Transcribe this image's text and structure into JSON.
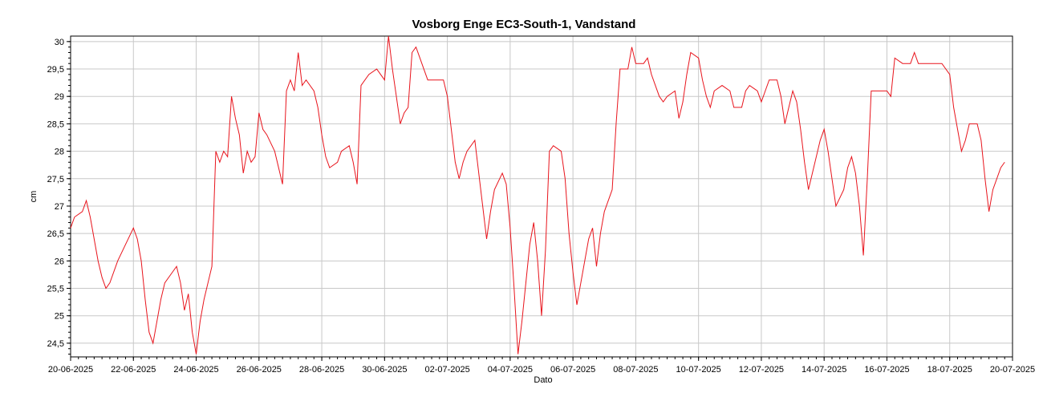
{
  "chart_data": {
    "type": "line",
    "title": "Vosborg Enge EC3-South-1, Vandstand",
    "xlabel": "Dato",
    "ylabel": "cm",
    "xlim": [
      "2025-06-20",
      "2025-07-20"
    ],
    "ylim": [
      24.25,
      30.1
    ],
    "x_ticks": [
      "20-06-2025",
      "22-06-2025",
      "24-06-2025",
      "26-06-2025",
      "28-06-2025",
      "30-06-2025",
      "02-07-2025",
      "04-07-2025",
      "06-07-2025",
      "08-07-2025",
      "10-07-2025",
      "12-07-2025",
      "14-07-2025",
      "16-07-2025",
      "18-07-2025",
      "20-07-2025"
    ],
    "y_ticks": [
      "24,5",
      "25",
      "25,5",
      "26",
      "26,5",
      "27",
      "27,5",
      "28",
      "28,5",
      "29",
      "29,5",
      "30"
    ],
    "grid": true,
    "series": [
      {
        "color": "#e8141c",
        "points": [
          [
            "2025-06-20 00:00",
            26.6
          ],
          [
            "2025-06-20 03:00",
            26.8
          ],
          [
            "2025-06-20 09:00",
            26.9
          ],
          [
            "2025-06-20 12:00",
            27.1
          ],
          [
            "2025-06-20 15:00",
            26.8
          ],
          [
            "2025-06-20 18:00",
            26.4
          ],
          [
            "2025-06-20 21:00",
            26.0
          ],
          [
            "2025-06-21 00:00",
            25.7
          ],
          [
            "2025-06-21 03:00",
            25.5
          ],
          [
            "2025-06-21 06:00",
            25.6
          ],
          [
            "2025-06-21 12:00",
            26.0
          ],
          [
            "2025-06-21 18:00",
            26.3
          ],
          [
            "2025-06-22 00:00",
            26.6
          ],
          [
            "2025-06-22 03:00",
            26.4
          ],
          [
            "2025-06-22 06:00",
            26.0
          ],
          [
            "2025-06-22 09:00",
            25.3
          ],
          [
            "2025-06-22 12:00",
            24.7
          ],
          [
            "2025-06-22 15:00",
            24.5
          ],
          [
            "2025-06-22 18:00",
            24.9
          ],
          [
            "2025-06-22 21:00",
            25.3
          ],
          [
            "2025-06-23 00:00",
            25.6
          ],
          [
            "2025-06-23 06:00",
            25.8
          ],
          [
            "2025-06-23 09:00",
            25.9
          ],
          [
            "2025-06-23 12:00",
            25.6
          ],
          [
            "2025-06-23 15:00",
            25.1
          ],
          [
            "2025-06-23 18:00",
            25.4
          ],
          [
            "2025-06-23 21:00",
            24.7
          ],
          [
            "2025-06-24 00:00",
            24.3
          ],
          [
            "2025-06-24 03:00",
            24.9
          ],
          [
            "2025-06-24 06:00",
            25.3
          ],
          [
            "2025-06-24 09:00",
            25.6
          ],
          [
            "2025-06-24 12:00",
            25.9
          ],
          [
            "2025-06-24 15:00",
            28.0
          ],
          [
            "2025-06-24 18:00",
            27.8
          ],
          [
            "2025-06-24 21:00",
            28.0
          ],
          [
            "2025-06-25 00:00",
            27.9
          ],
          [
            "2025-06-25 03:00",
            29.0
          ],
          [
            "2025-06-25 06:00",
            28.6
          ],
          [
            "2025-06-25 09:00",
            28.3
          ],
          [
            "2025-06-25 12:00",
            27.6
          ],
          [
            "2025-06-25 15:00",
            28.0
          ],
          [
            "2025-06-25 18:00",
            27.8
          ],
          [
            "2025-06-25 21:00",
            27.9
          ],
          [
            "2025-06-26 00:00",
            28.7
          ],
          [
            "2025-06-26 03:00",
            28.4
          ],
          [
            "2025-06-26 06:00",
            28.3
          ],
          [
            "2025-06-26 12:00",
            28.0
          ],
          [
            "2025-06-26 18:00",
            27.4
          ],
          [
            "2025-06-26 21:00",
            29.1
          ],
          [
            "2025-06-27 00:00",
            29.3
          ],
          [
            "2025-06-27 03:00",
            29.1
          ],
          [
            "2025-06-27 06:00",
            29.8
          ],
          [
            "2025-06-27 09:00",
            29.2
          ],
          [
            "2025-06-27 12:00",
            29.3
          ],
          [
            "2025-06-27 18:00",
            29.1
          ],
          [
            "2025-06-27 21:00",
            28.8
          ],
          [
            "2025-06-28 00:00",
            28.3
          ],
          [
            "2025-06-28 03:00",
            27.9
          ],
          [
            "2025-06-28 06:00",
            27.7
          ],
          [
            "2025-06-28 12:00",
            27.8
          ],
          [
            "2025-06-28 15:00",
            28.0
          ],
          [
            "2025-06-28 21:00",
            28.1
          ],
          [
            "2025-06-29 00:00",
            27.8
          ],
          [
            "2025-06-29 03:00",
            27.4
          ],
          [
            "2025-06-29 06:00",
            29.2
          ],
          [
            "2025-06-29 12:00",
            29.4
          ],
          [
            "2025-06-29 18:00",
            29.5
          ],
          [
            "2025-06-30 00:00",
            29.3
          ],
          [
            "2025-06-30 03:00",
            30.1
          ],
          [
            "2025-06-30 06:00",
            29.5
          ],
          [
            "2025-06-30 09:00",
            29.0
          ],
          [
            "2025-06-30 12:00",
            28.5
          ],
          [
            "2025-06-30 15:00",
            28.7
          ],
          [
            "2025-06-30 18:00",
            28.8
          ],
          [
            "2025-06-30 21:00",
            29.8
          ],
          [
            "2025-07-01 00:00",
            29.9
          ],
          [
            "2025-07-01 03:00",
            29.7
          ],
          [
            "2025-07-01 06:00",
            29.5
          ],
          [
            "2025-07-01 09:00",
            29.3
          ],
          [
            "2025-07-01 15:00",
            29.3
          ],
          [
            "2025-07-01 21:00",
            29.3
          ],
          [
            "2025-07-02 00:00",
            29.0
          ],
          [
            "2025-07-02 03:00",
            28.4
          ],
          [
            "2025-07-02 06:00",
            27.8
          ],
          [
            "2025-07-02 09:00",
            27.5
          ],
          [
            "2025-07-02 12:00",
            27.8
          ],
          [
            "2025-07-02 15:00",
            28.0
          ],
          [
            "2025-07-02 21:00",
            28.2
          ],
          [
            "2025-07-03 00:00",
            27.6
          ],
          [
            "2025-07-03 03:00",
            27.0
          ],
          [
            "2025-07-03 06:00",
            26.4
          ],
          [
            "2025-07-03 09:00",
            26.9
          ],
          [
            "2025-07-03 12:00",
            27.3
          ],
          [
            "2025-07-03 18:00",
            27.6
          ],
          [
            "2025-07-03 21:00",
            27.4
          ],
          [
            "2025-07-04 00:00",
            26.6
          ],
          [
            "2025-07-04 03:00",
            25.5
          ],
          [
            "2025-07-04 06:00",
            24.3
          ],
          [
            "2025-07-04 09:00",
            24.9
          ],
          [
            "2025-07-04 12:00",
            25.6
          ],
          [
            "2025-07-04 15:00",
            26.3
          ],
          [
            "2025-07-04 18:00",
            26.7
          ],
          [
            "2025-07-04 21:00",
            26.0
          ],
          [
            "2025-07-05 00:00",
            25.0
          ],
          [
            "2025-07-05 03:00",
            26.2
          ],
          [
            "2025-07-05 06:00",
            28.0
          ],
          [
            "2025-07-05 09:00",
            28.1
          ],
          [
            "2025-07-05 15:00",
            28.0
          ],
          [
            "2025-07-05 18:00",
            27.5
          ],
          [
            "2025-07-05 21:00",
            26.5
          ],
          [
            "2025-07-06 00:00",
            25.8
          ],
          [
            "2025-07-06 03:00",
            25.2
          ],
          [
            "2025-07-06 06:00",
            25.6
          ],
          [
            "2025-07-06 12:00",
            26.4
          ],
          [
            "2025-07-06 15:00",
            26.6
          ],
          [
            "2025-07-06 18:00",
            25.9
          ],
          [
            "2025-07-06 21:00",
            26.5
          ],
          [
            "2025-07-07 00:00",
            26.9
          ],
          [
            "2025-07-07 06:00",
            27.3
          ],
          [
            "2025-07-07 09:00",
            28.5
          ],
          [
            "2025-07-07 12:00",
            29.5
          ],
          [
            "2025-07-07 18:00",
            29.5
          ],
          [
            "2025-07-07 21:00",
            29.9
          ],
          [
            "2025-07-08 00:00",
            29.6
          ],
          [
            "2025-07-08 06:00",
            29.6
          ],
          [
            "2025-07-08 09:00",
            29.7
          ],
          [
            "2025-07-08 12:00",
            29.4
          ],
          [
            "2025-07-08 15:00",
            29.2
          ],
          [
            "2025-07-08 18:00",
            29.0
          ],
          [
            "2025-07-08 21:00",
            28.9
          ],
          [
            "2025-07-09 00:00",
            29.0
          ],
          [
            "2025-07-09 06:00",
            29.1
          ],
          [
            "2025-07-09 09:00",
            28.6
          ],
          [
            "2025-07-09 12:00",
            28.9
          ],
          [
            "2025-07-09 15:00",
            29.4
          ],
          [
            "2025-07-09 18:00",
            29.8
          ],
          [
            "2025-07-10 00:00",
            29.7
          ],
          [
            "2025-07-10 03:00",
            29.3
          ],
          [
            "2025-07-10 06:00",
            29.0
          ],
          [
            "2025-07-10 09:00",
            28.8
          ],
          [
            "2025-07-10 12:00",
            29.1
          ],
          [
            "2025-07-10 18:00",
            29.2
          ],
          [
            "2025-07-11 00:00",
            29.1
          ],
          [
            "2025-07-11 03:00",
            28.8
          ],
          [
            "2025-07-11 09:00",
            28.8
          ],
          [
            "2025-07-11 12:00",
            29.1
          ],
          [
            "2025-07-11 15:00",
            29.2
          ],
          [
            "2025-07-11 21:00",
            29.1
          ],
          [
            "2025-07-12 00:00",
            28.9
          ],
          [
            "2025-07-12 03:00",
            29.1
          ],
          [
            "2025-07-12 06:00",
            29.3
          ],
          [
            "2025-07-12 12:00",
            29.3
          ],
          [
            "2025-07-12 15:00",
            29.0
          ],
          [
            "2025-07-12 18:00",
            28.5
          ],
          [
            "2025-07-12 21:00",
            28.8
          ],
          [
            "2025-07-13 00:00",
            29.1
          ],
          [
            "2025-07-13 03:00",
            28.9
          ],
          [
            "2025-07-13 06:00",
            28.4
          ],
          [
            "2025-07-13 09:00",
            27.8
          ],
          [
            "2025-07-13 12:00",
            27.3
          ],
          [
            "2025-07-13 18:00",
            27.9
          ],
          [
            "2025-07-13 21:00",
            28.2
          ],
          [
            "2025-07-14 00:00",
            28.4
          ],
          [
            "2025-07-14 03:00",
            28.0
          ],
          [
            "2025-07-14 06:00",
            27.5
          ],
          [
            "2025-07-14 09:00",
            27.0
          ],
          [
            "2025-07-14 15:00",
            27.3
          ],
          [
            "2025-07-14 18:00",
            27.7
          ],
          [
            "2025-07-14 21:00",
            27.9
          ],
          [
            "2025-07-15 00:00",
            27.6
          ],
          [
            "2025-07-15 03:00",
            27.0
          ],
          [
            "2025-07-15 06:00",
            26.1
          ],
          [
            "2025-07-15 09:00",
            27.5
          ],
          [
            "2025-07-15 12:00",
            29.1
          ],
          [
            "2025-07-15 18:00",
            29.1
          ],
          [
            "2025-07-16 00:00",
            29.1
          ],
          [
            "2025-07-16 03:00",
            29.0
          ],
          [
            "2025-07-16 06:00",
            29.7
          ],
          [
            "2025-07-16 12:00",
            29.6
          ],
          [
            "2025-07-16 18:00",
            29.6
          ],
          [
            "2025-07-16 21:00",
            29.8
          ],
          [
            "2025-07-17 00:00",
            29.6
          ],
          [
            "2025-07-17 06:00",
            29.6
          ],
          [
            "2025-07-17 12:00",
            29.6
          ],
          [
            "2025-07-17 18:00",
            29.6
          ],
          [
            "2025-07-18 00:00",
            29.4
          ],
          [
            "2025-07-18 03:00",
            28.8
          ],
          [
            "2025-07-18 06:00",
            28.4
          ],
          [
            "2025-07-18 09:00",
            28.0
          ],
          [
            "2025-07-18 12:00",
            28.2
          ],
          [
            "2025-07-18 15:00",
            28.5
          ],
          [
            "2025-07-18 21:00",
            28.5
          ],
          [
            "2025-07-19 00:00",
            28.2
          ],
          [
            "2025-07-19 03:00",
            27.5
          ],
          [
            "2025-07-19 06:00",
            26.9
          ],
          [
            "2025-07-19 09:00",
            27.3
          ],
          [
            "2025-07-19 15:00",
            27.7
          ],
          [
            "2025-07-19 18:00",
            27.8
          ]
        ]
      }
    ]
  }
}
